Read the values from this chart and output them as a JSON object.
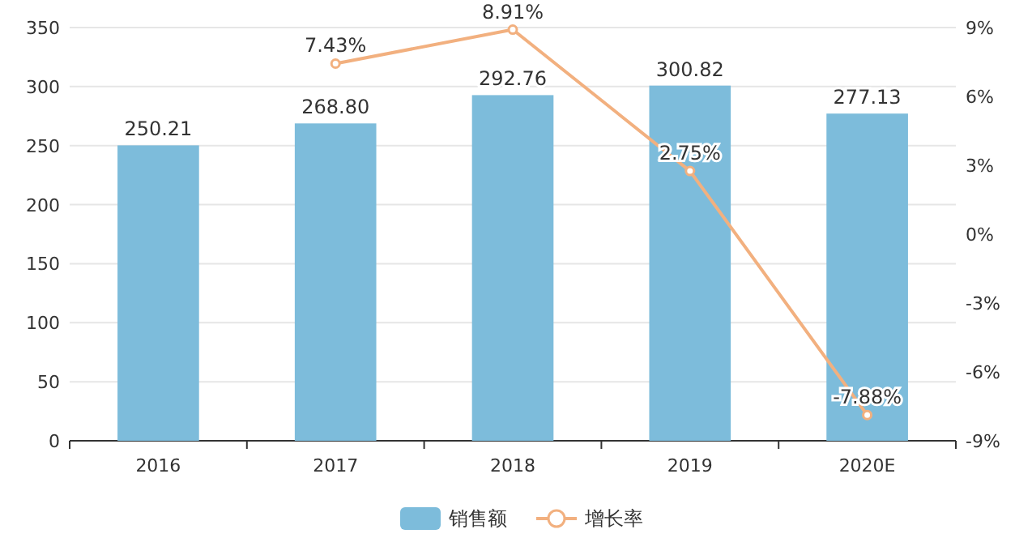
{
  "chart_data": {
    "type": "bar",
    "categories": [
      "2016",
      "2017",
      "2018",
      "2019",
      "2020E"
    ],
    "series": [
      {
        "name": "销售额",
        "color": "#7dbcdb",
        "values": [
          250.21,
          268.8,
          292.76,
          300.82,
          277.13
        ],
        "value_labels": [
          "250.21",
          "268.80",
          "292.76",
          "300.82",
          "277.13"
        ]
      },
      {
        "name": "增长率",
        "type": "line",
        "axis": "y2",
        "color": "#f2b07f",
        "values": [
          null,
          7.43,
          8.91,
          2.75,
          -7.88
        ],
        "value_labels": [
          null,
          "7.43%",
          "8.91%",
          "2.75%",
          "-7.88%"
        ]
      }
    ],
    "ylim": [
      0,
      350
    ],
    "yticks": [
      0,
      50,
      100,
      150,
      200,
      250,
      300,
      350
    ],
    "y2lim": [
      -9,
      9
    ],
    "y2ticks": [
      {
        "value": -9,
        "label": "-9%"
      },
      {
        "value": -6,
        "label": "-6%"
      },
      {
        "value": -3,
        "label": "-3%"
      },
      {
        "value": 0,
        "label": "0%"
      },
      {
        "value": 3,
        "label": "3%"
      },
      {
        "value": 6,
        "label": "6%"
      },
      {
        "value": 9,
        "label": "9%"
      }
    ],
    "grid": "y",
    "legend": "bottom",
    "marker": "circle",
    "line_style": "solid"
  }
}
